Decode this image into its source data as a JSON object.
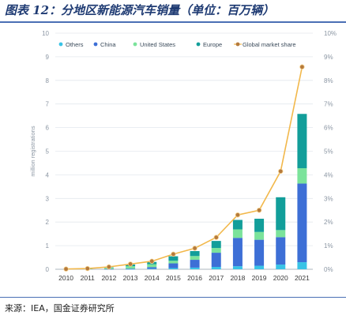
{
  "title": "图表 12：分地区新能源汽车销量（单位：百万辆）",
  "source": "来源：IEA，国金证券研究所",
  "chart_data": {
    "type": "bar",
    "categories": [
      "2010",
      "2011",
      "2012",
      "2013",
      "2014",
      "2015",
      "2016",
      "2017",
      "2018",
      "2019",
      "2020",
      "2021"
    ],
    "ylabel": "million registrations",
    "ylim": [
      0,
      10
    ],
    "yticks": [
      0,
      1,
      2,
      3,
      4,
      5,
      6,
      7,
      8,
      9,
      10
    ],
    "y2lim": [
      0,
      10
    ],
    "y2ticks": [
      "0%",
      "1%",
      "2%",
      "3%",
      "4%",
      "5%",
      "6%",
      "7%",
      "8%",
      "9%",
      "10%"
    ],
    "legend_position": "top",
    "grid": true,
    "series": [
      {
        "name": "Others",
        "kind": "bar",
        "color": "#39c3e6",
        "values": [
          0,
          0,
          0,
          0.01,
          0.02,
          0.05,
          0.07,
          0.1,
          0.13,
          0.15,
          0.2,
          0.3
        ]
      },
      {
        "name": "China",
        "kind": "bar",
        "color": "#3d6fd6",
        "values": [
          0,
          0,
          0.01,
          0.02,
          0.07,
          0.2,
          0.33,
          0.6,
          1.2,
          1.1,
          1.16,
          3.33
        ]
      },
      {
        "name": "United States",
        "kind": "bar",
        "color": "#7be39b",
        "values": [
          0,
          0.02,
          0.05,
          0.1,
          0.12,
          0.11,
          0.16,
          0.2,
          0.36,
          0.33,
          0.3,
          0.65
        ]
      },
      {
        "name": "Europe",
        "kind": "bar",
        "color": "#129e9a",
        "values": [
          0,
          0.01,
          0.02,
          0.07,
          0.1,
          0.19,
          0.21,
          0.3,
          0.4,
          0.56,
          1.39,
          2.3
        ]
      },
      {
        "name": "Global market share",
        "kind": "line",
        "axis": "right",
        "color": "#f2b84b",
        "marker_color": "#b57a3c",
        "values": [
          0.01,
          0.03,
          0.1,
          0.22,
          0.34,
          0.64,
          0.89,
          1.35,
          2.3,
          2.5,
          4.15,
          8.57
        ]
      }
    ]
  }
}
